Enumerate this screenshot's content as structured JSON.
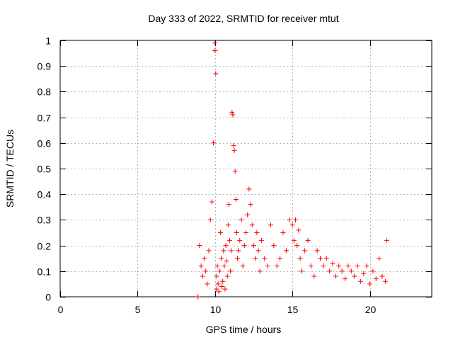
{
  "chart_data": {
    "type": "scatter",
    "title": "Day 333 of 2022, SRMTID for receiver mtut",
    "xlabel": "GPS time / hours",
    "ylabel": "SRMTID / TECUs",
    "xlim": [
      0,
      24
    ],
    "ylim": [
      0,
      1
    ],
    "xticks": [
      0,
      5,
      10,
      15,
      20
    ],
    "yticks": [
      0,
      0.1,
      0.2,
      0.3,
      0.4,
      0.5,
      0.6,
      0.7,
      0.8,
      0.9,
      1
    ],
    "grid": true,
    "marker": "+",
    "color": "#ff0000",
    "series": [
      {
        "name": "SRMTID",
        "x": [
          8.9,
          8.9,
          9.0,
          9.1,
          9.2,
          9.3,
          9.4,
          9.5,
          9.6,
          9.7,
          9.8,
          9.9,
          10.0,
          10.0,
          10.05,
          10.1,
          10.1,
          10.15,
          10.2,
          10.25,
          10.3,
          10.35,
          10.4,
          10.45,
          10.5,
          10.55,
          10.6,
          10.65,
          10.7,
          10.75,
          10.8,
          10.85,
          10.9,
          10.95,
          11.0,
          11.05,
          11.1,
          11.15,
          11.2,
          11.25,
          11.3,
          11.35,
          11.4,
          11.45,
          11.5,
          11.6,
          11.7,
          11.8,
          11.9,
          12.0,
          12.1,
          12.2,
          12.3,
          12.4,
          12.5,
          12.6,
          12.7,
          12.8,
          12.9,
          13.0,
          13.2,
          13.4,
          13.6,
          13.8,
          14.0,
          14.2,
          14.4,
          14.6,
          14.8,
          15.0,
          15.1,
          15.2,
          15.3,
          15.4,
          15.5,
          15.6,
          15.8,
          16.0,
          16.2,
          16.4,
          16.6,
          16.8,
          17.0,
          17.2,
          17.4,
          17.6,
          17.8,
          18.0,
          18.2,
          18.4,
          18.6,
          18.8,
          19.0,
          19.2,
          19.4,
          19.6,
          19.8,
          20.0,
          20.2,
          20.4,
          20.6,
          20.8,
          21.0,
          21.1
        ],
        "y": [
          0.0,
          0.0,
          0.2,
          0.12,
          0.08,
          0.15,
          0.1,
          0.05,
          0.18,
          0.3,
          0.37,
          0.6,
          0.99,
          0.96,
          0.87,
          0.08,
          0.03,
          0.12,
          0.05,
          0.02,
          0.1,
          0.25,
          0.15,
          0.04,
          0.06,
          0.18,
          0.12,
          0.03,
          0.2,
          0.14,
          0.08,
          0.28,
          0.36,
          0.22,
          0.1,
          0.18,
          0.72,
          0.71,
          0.59,
          0.57,
          0.49,
          0.38,
          0.25,
          0.15,
          0.18,
          0.22,
          0.3,
          0.12,
          0.2,
          0.25,
          0.32,
          0.42,
          0.36,
          0.28,
          0.2,
          0.15,
          0.25,
          0.18,
          0.1,
          0.22,
          0.15,
          0.12,
          0.28,
          0.2,
          0.12,
          0.15,
          0.25,
          0.18,
          0.3,
          0.28,
          0.22,
          0.3,
          0.2,
          0.26,
          0.15,
          0.1,
          0.18,
          0.22,
          0.12,
          0.08,
          0.18,
          0.15,
          0.12,
          0.15,
          0.1,
          0.13,
          0.08,
          0.12,
          0.1,
          0.07,
          0.12,
          0.1,
          0.08,
          0.12,
          0.06,
          0.09,
          0.12,
          0.05,
          0.1,
          0.07,
          0.15,
          0.08,
          0.06,
          0.22
        ]
      }
    ]
  }
}
